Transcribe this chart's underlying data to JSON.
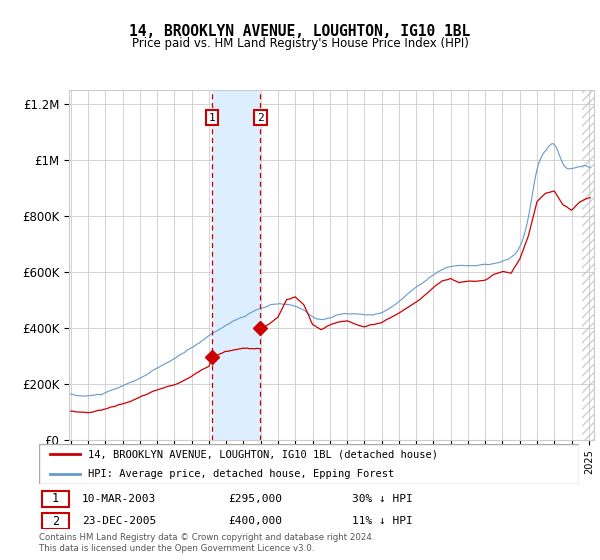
{
  "title": "14, BROOKLYN AVENUE, LOUGHTON, IG10 1BL",
  "subtitle": "Price paid vs. HM Land Registry's House Price Index (HPI)",
  "legend_line1": "14, BROOKLYN AVENUE, LOUGHTON, IG10 1BL (detached house)",
  "legend_line2": "HPI: Average price, detached house, Epping Forest",
  "footer": "Contains HM Land Registry data © Crown copyright and database right 2024.\nThis data is licensed under the Open Government Licence v3.0.",
  "sale1_date": 2003.19,
  "sale1_price": 295000,
  "sale2_date": 2005.98,
  "sale2_price": 400000,
  "hpi_color": "#6699cc",
  "price_color": "#cc0000",
  "sale_marker_color": "#cc0000",
  "shaded_region_color": "#ddeeff",
  "grid_color": "#cccccc",
  "ylim": [
    0,
    1250000
  ],
  "xlim_start": 1995.0,
  "xlim_end": 2025.3
}
